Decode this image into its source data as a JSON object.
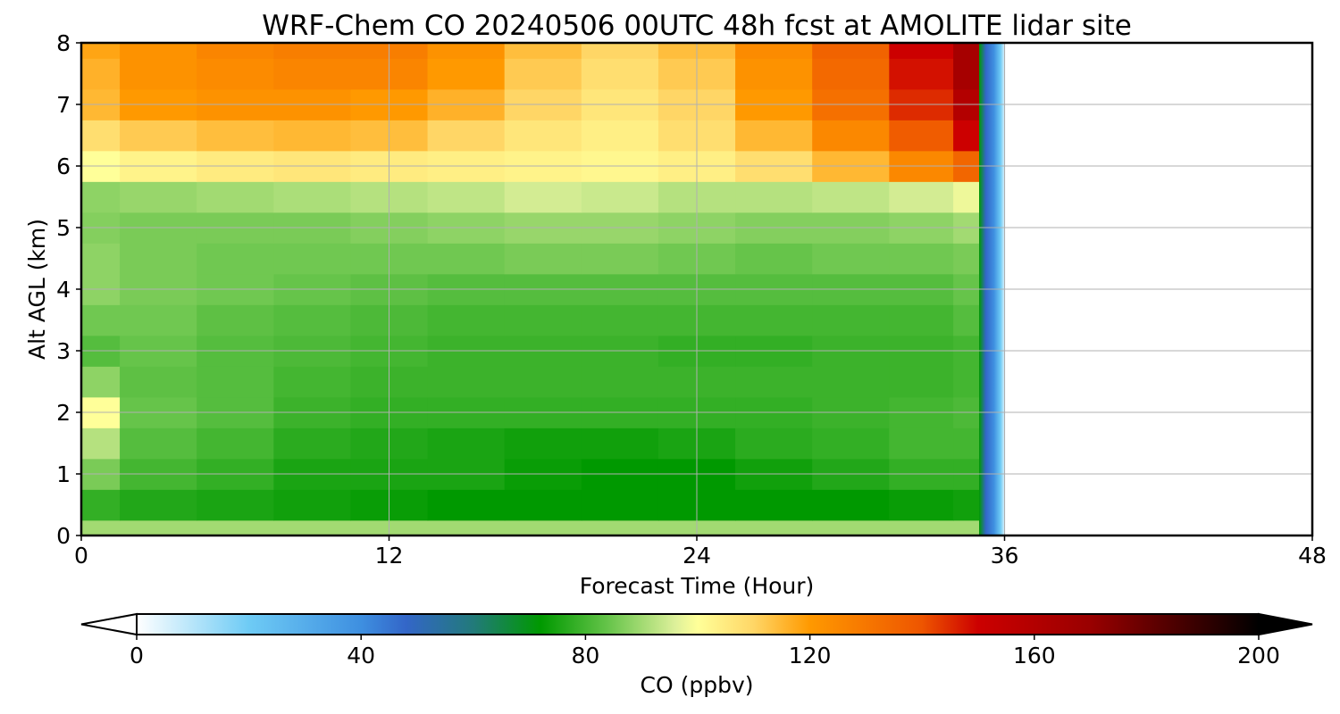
{
  "chart_data": {
    "type": "heatmap",
    "title": "WRF-Chem CO  20240506 00UTC 48h fcst at AMOLITE lidar site",
    "xlabel": "Forecast Time (Hour)",
    "ylabel": "Alt AGL (km)",
    "xlim": [
      0,
      48
    ],
    "ylim": [
      0,
      8
    ],
    "x_ticks": [
      "0",
      "12",
      "24",
      "36",
      "48"
    ],
    "y_ticks": [
      "0",
      "1",
      "2",
      "3",
      "4",
      "5",
      "6",
      "7",
      "8"
    ],
    "grid": true,
    "data_end_hour": 36,
    "x": [
      0,
      3,
      6,
      9,
      12,
      15,
      18,
      21,
      24,
      27,
      30,
      33,
      35
    ],
    "y": [
      0,
      0.5,
      1,
      1.5,
      2,
      2.5,
      3,
      3.5,
      4,
      4.5,
      5,
      5.5,
      6,
      6.5,
      7,
      7.5,
      8
    ],
    "z": [
      [
        90,
        90,
        90,
        90,
        90,
        90,
        90,
        90,
        90,
        90,
        90,
        90,
        90
      ],
      [
        78,
        76,
        75,
        74,
        73,
        72,
        72,
        72,
        72,
        72,
        72,
        73,
        74
      ],
      [
        86,
        80,
        78,
        75,
        75,
        75,
        73,
        72,
        72,
        74,
        76,
        78,
        78
      ],
      [
        92,
        82,
        80,
        77,
        76,
        75,
        74,
        74,
        75,
        77,
        78,
        80,
        80
      ],
      [
        100,
        84,
        82,
        79,
        78,
        78,
        78,
        78,
        78,
        78,
        79,
        80,
        81
      ],
      [
        88,
        83,
        82,
        80,
        79,
        79,
        79,
        79,
        79,
        79,
        79,
        79,
        80
      ],
      [
        82,
        84,
        82,
        81,
        80,
        79,
        79,
        79,
        78,
        78,
        79,
        79,
        80
      ],
      [
        85,
        85,
        83,
        82,
        81,
        80,
        80,
        80,
        80,
        80,
        80,
        80,
        82
      ],
      [
        88,
        86,
        85,
        84,
        83,
        82,
        82,
        82,
        82,
        82,
        82,
        82,
        84
      ],
      [
        88,
        86,
        85,
        85,
        85,
        85,
        86,
        86,
        85,
        84,
        85,
        85,
        86
      ],
      [
        87,
        86,
        86,
        86,
        87,
        88,
        89,
        89,
        88,
        87,
        87,
        88,
        90
      ],
      [
        88,
        89,
        90,
        91,
        92,
        93,
        95,
        94,
        92,
        92,
        93,
        95,
        98
      ],
      [
        100,
        103,
        105,
        106,
        105,
        104,
        103,
        102,
        104,
        108,
        115,
        125,
        135
      ],
      [
        108,
        112,
        114,
        115,
        114,
        110,
        106,
        104,
        108,
        115,
        125,
        138,
        150
      ],
      [
        115,
        120,
        122,
        122,
        120,
        116,
        110,
        106,
        110,
        120,
        132,
        145,
        160
      ],
      [
        116,
        122,
        124,
        126,
        126,
        120,
        112,
        108,
        112,
        122,
        134,
        148,
        165
      ],
      [
        118,
        122,
        126,
        128,
        128,
        122,
        114,
        110,
        114,
        124,
        136,
        150,
        165
      ]
    ],
    "colorbar": {
      "label": "CO  (ppbv)",
      "min": 0,
      "max": 200,
      "ticks": [
        "0",
        "40",
        "80",
        "120",
        "160",
        "200"
      ],
      "extend": "both",
      "stops": [
        {
          "v": 0,
          "c": "#ffffff"
        },
        {
          "v": 20,
          "c": "#6ecbf5"
        },
        {
          "v": 40,
          "c": "#3e8fe0"
        },
        {
          "v": 48,
          "c": "#3366c8"
        },
        {
          "v": 60,
          "c": "#227a7a"
        },
        {
          "v": 72,
          "c": "#009900"
        },
        {
          "v": 84,
          "c": "#66c44a"
        },
        {
          "v": 96,
          "c": "#ddf09a"
        },
        {
          "v": 100,
          "c": "#ffff99"
        },
        {
          "v": 110,
          "c": "#ffd666"
        },
        {
          "v": 120,
          "c": "#ff9900"
        },
        {
          "v": 140,
          "c": "#ee5500"
        },
        {
          "v": 150,
          "c": "#cc0000"
        },
        {
          "v": 170,
          "c": "#990000"
        },
        {
          "v": 200,
          "c": "#000000"
        }
      ]
    }
  }
}
